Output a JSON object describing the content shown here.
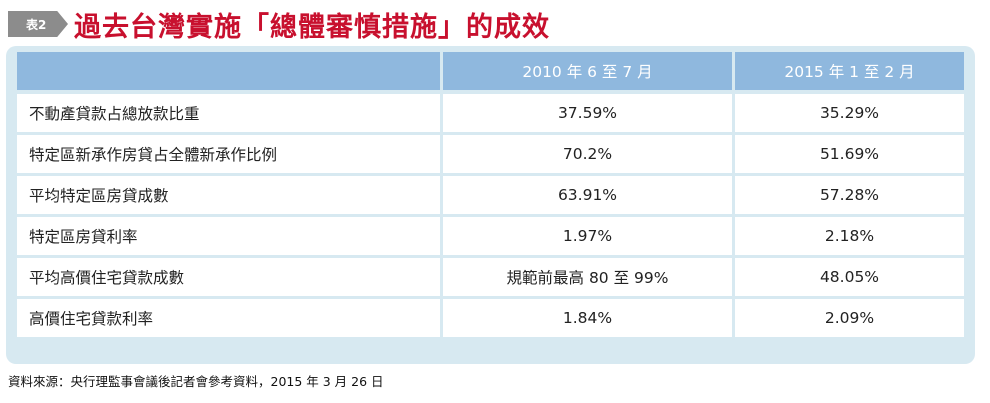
{
  "title": {
    "tag": "表2",
    "text": "過去台灣實施「總體審慎措施」的成效"
  },
  "table": {
    "headers": [
      "",
      "2010 年 6 至 7 月",
      "2015 年 1 至 2 月"
    ],
    "rows": [
      [
        "不動產貸款占總放款比重",
        "37.59%",
        "35.29%"
      ],
      [
        "特定區新承作房貸占全體新承作比例",
        "70.2%",
        "51.69%"
      ],
      [
        "平均特定區房貸成數",
        "63.91%",
        "57.28%"
      ],
      [
        "特定區房貸利率",
        "1.97%",
        "2.18%"
      ],
      [
        "平均高價住宅貸款成數",
        "規範前最高 80 至 99%",
        "48.05%"
      ],
      [
        "高價住宅貸款利率",
        "1.84%",
        "2.09%"
      ]
    ]
  },
  "source": "資料來源：央行理監事會議後記者會參考資料，2015 年 3 月 26 日",
  "colors": {
    "title": "#c8102e",
    "header_bg": "#8fb8de",
    "panel_bg": "#d7e9f1",
    "tag_bg": "#8c8c8c"
  }
}
